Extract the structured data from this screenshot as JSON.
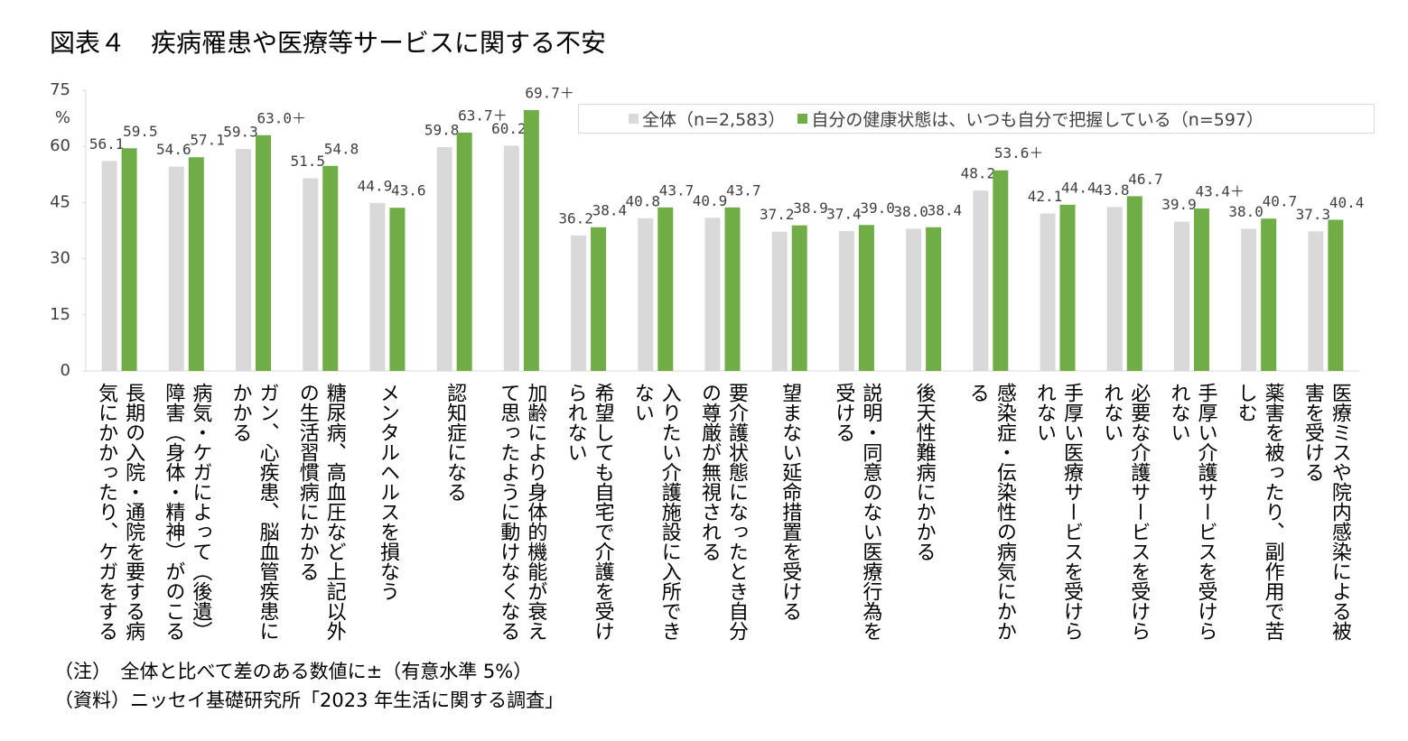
{
  "chart_data": {
    "type": "bar",
    "title": "図表４　疾病罹患や医療等サービスに関する不安",
    "y_unit": "%",
    "categories": [
      "長期の入院・通院を要する病気にかかったり、ケガをする",
      "病気・ケガによって（後遺）障害（身体・精神）がのこる",
      "ガン、心疾患、脳血管疾患にかかる",
      "糖尿病、高血圧など上記以外の生活習慣病にかかる",
      "メンタルヘルスを損なう",
      "認知症になる",
      "加齢により身体的機能が衰えて思ったように動けなくなる",
      "希望しても自宅で介護を受けられない",
      "入りたい介護施設に入所できない",
      "要介護状態になったとき自分の尊厳が無視される",
      "望まない延命措置を受ける",
      "説明・同意のない医療行為を受ける",
      "後天性難病にかかる",
      "感染症・伝染性の病気にかかる",
      "手厚い医療サービスを受けられない",
      "必要な介護サービスを受けられない",
      "手厚い介護サービスを受けられない",
      "薬害を被ったり、副作用で苦しむ",
      "医療ミスや院内感染による被害を受ける"
    ],
    "series": [
      {
        "name": "全体（n=2,583）",
        "color": "#d9d9d9",
        "values": [
          56.1,
          54.6,
          59.3,
          51.5,
          44.9,
          59.8,
          60.2,
          36.2,
          40.8,
          40.9,
          37.2,
          37.4,
          38.0,
          48.2,
          42.1,
          43.8,
          39.9,
          38.0,
          37.3
        ],
        "value_labels": [
          "56.1",
          "54.6",
          "59.3",
          "51.5",
          "44.9",
          "59.8",
          "60.2",
          "36.2",
          "40.8",
          "40.9",
          "37.2",
          "37.4",
          "38.0",
          "48.2",
          "42.1",
          "43.8",
          "39.9",
          "38.0",
          "37.3"
        ]
      },
      {
        "name": "自分の健康状態は、いつも自分で把握している（n=597）",
        "color": "#70ad47",
        "values": [
          59.5,
          57.1,
          63.0,
          54.8,
          43.6,
          63.7,
          69.7,
          38.4,
          43.7,
          43.7,
          38.9,
          39.0,
          38.4,
          53.6,
          44.4,
          46.7,
          43.4,
          40.7,
          40.4
        ],
        "value_labels": [
          "59.5",
          "57.1",
          "63.0＋",
          "54.8",
          "43.6",
          "63.7＋",
          "69.7＋",
          "38.4",
          "43.7",
          "43.7",
          "38.9",
          "39.0",
          "38.4",
          "53.6＋",
          "44.4",
          "46.7",
          "43.4＋",
          "40.7",
          "40.4"
        ]
      }
    ],
    "ylim": [
      0,
      75
    ],
    "yticks": [
      0,
      15,
      30,
      45,
      60,
      75
    ],
    "notes": [
      "（注）　全体と比べて差のある数値に±（有意水準 5%）",
      "（資料）ニッセイ基礎研究所「2023 年生活に関する調査」"
    ]
  }
}
